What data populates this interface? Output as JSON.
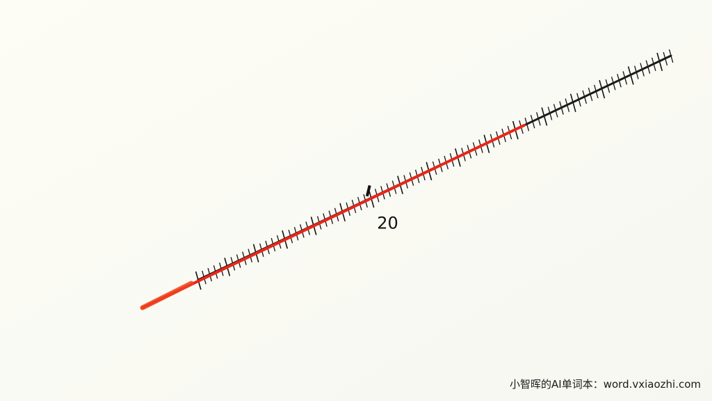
{
  "scale": {
    "major_label": "20",
    "major_value": 20,
    "fill_level": 0.69,
    "colors": {
      "fill": "#e8261a",
      "scale_line": "#1a1a1a",
      "tick": "#111111",
      "background": "#fbfbf9"
    }
  },
  "watermark": {
    "text": "小智晖的AI单词本：word.vxiaozhi.com"
  }
}
